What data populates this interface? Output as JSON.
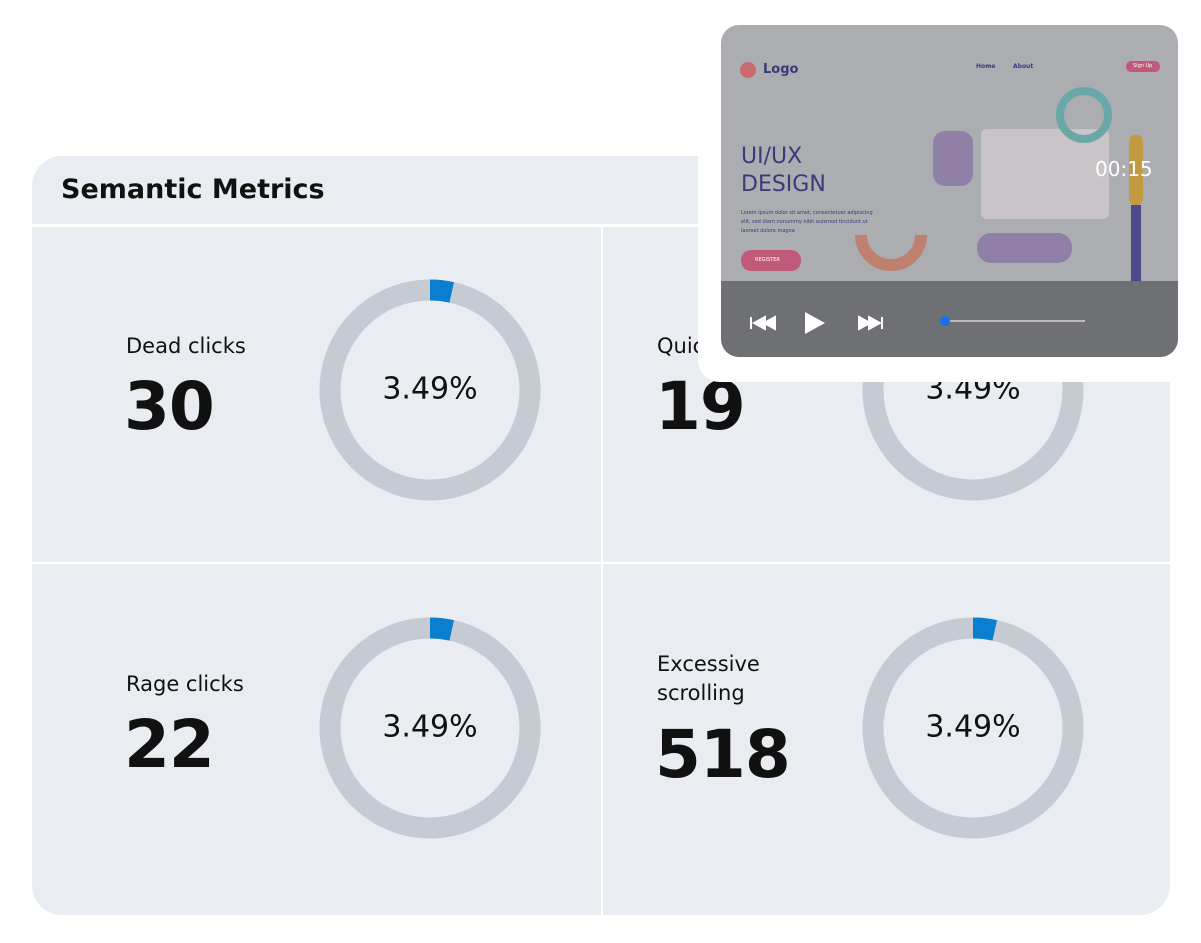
{
  "panel": {
    "title": "Semantic Metrics",
    "cards": [
      {
        "label": "Dead clicks",
        "count": "30",
        "percent": 3.49,
        "percent_label": "3.49%"
      },
      {
        "label": "Quick backs",
        "count": "19",
        "percent": 3.49,
        "percent_label": "3.49%"
      },
      {
        "label": "Rage clicks",
        "count": "22",
        "percent": 3.49,
        "percent_label": "3.49%"
      },
      {
        "label": "Excessive scrolling",
        "count": "518",
        "percent": 3.49,
        "percent_label": "3.49%"
      }
    ]
  },
  "video": {
    "logo": "Logo",
    "nav": [
      "Home",
      "About"
    ],
    "signup": "Sign Up",
    "headline": "UI/UX DESIGN",
    "body": "Lorem ipsum dolor sit amet, consectetuer adipiscing elit, sed diam nonummy nibh euismod tincidunt ut laoreet dolore magna",
    "button": "REGISTER",
    "time": "00:15"
  }
}
